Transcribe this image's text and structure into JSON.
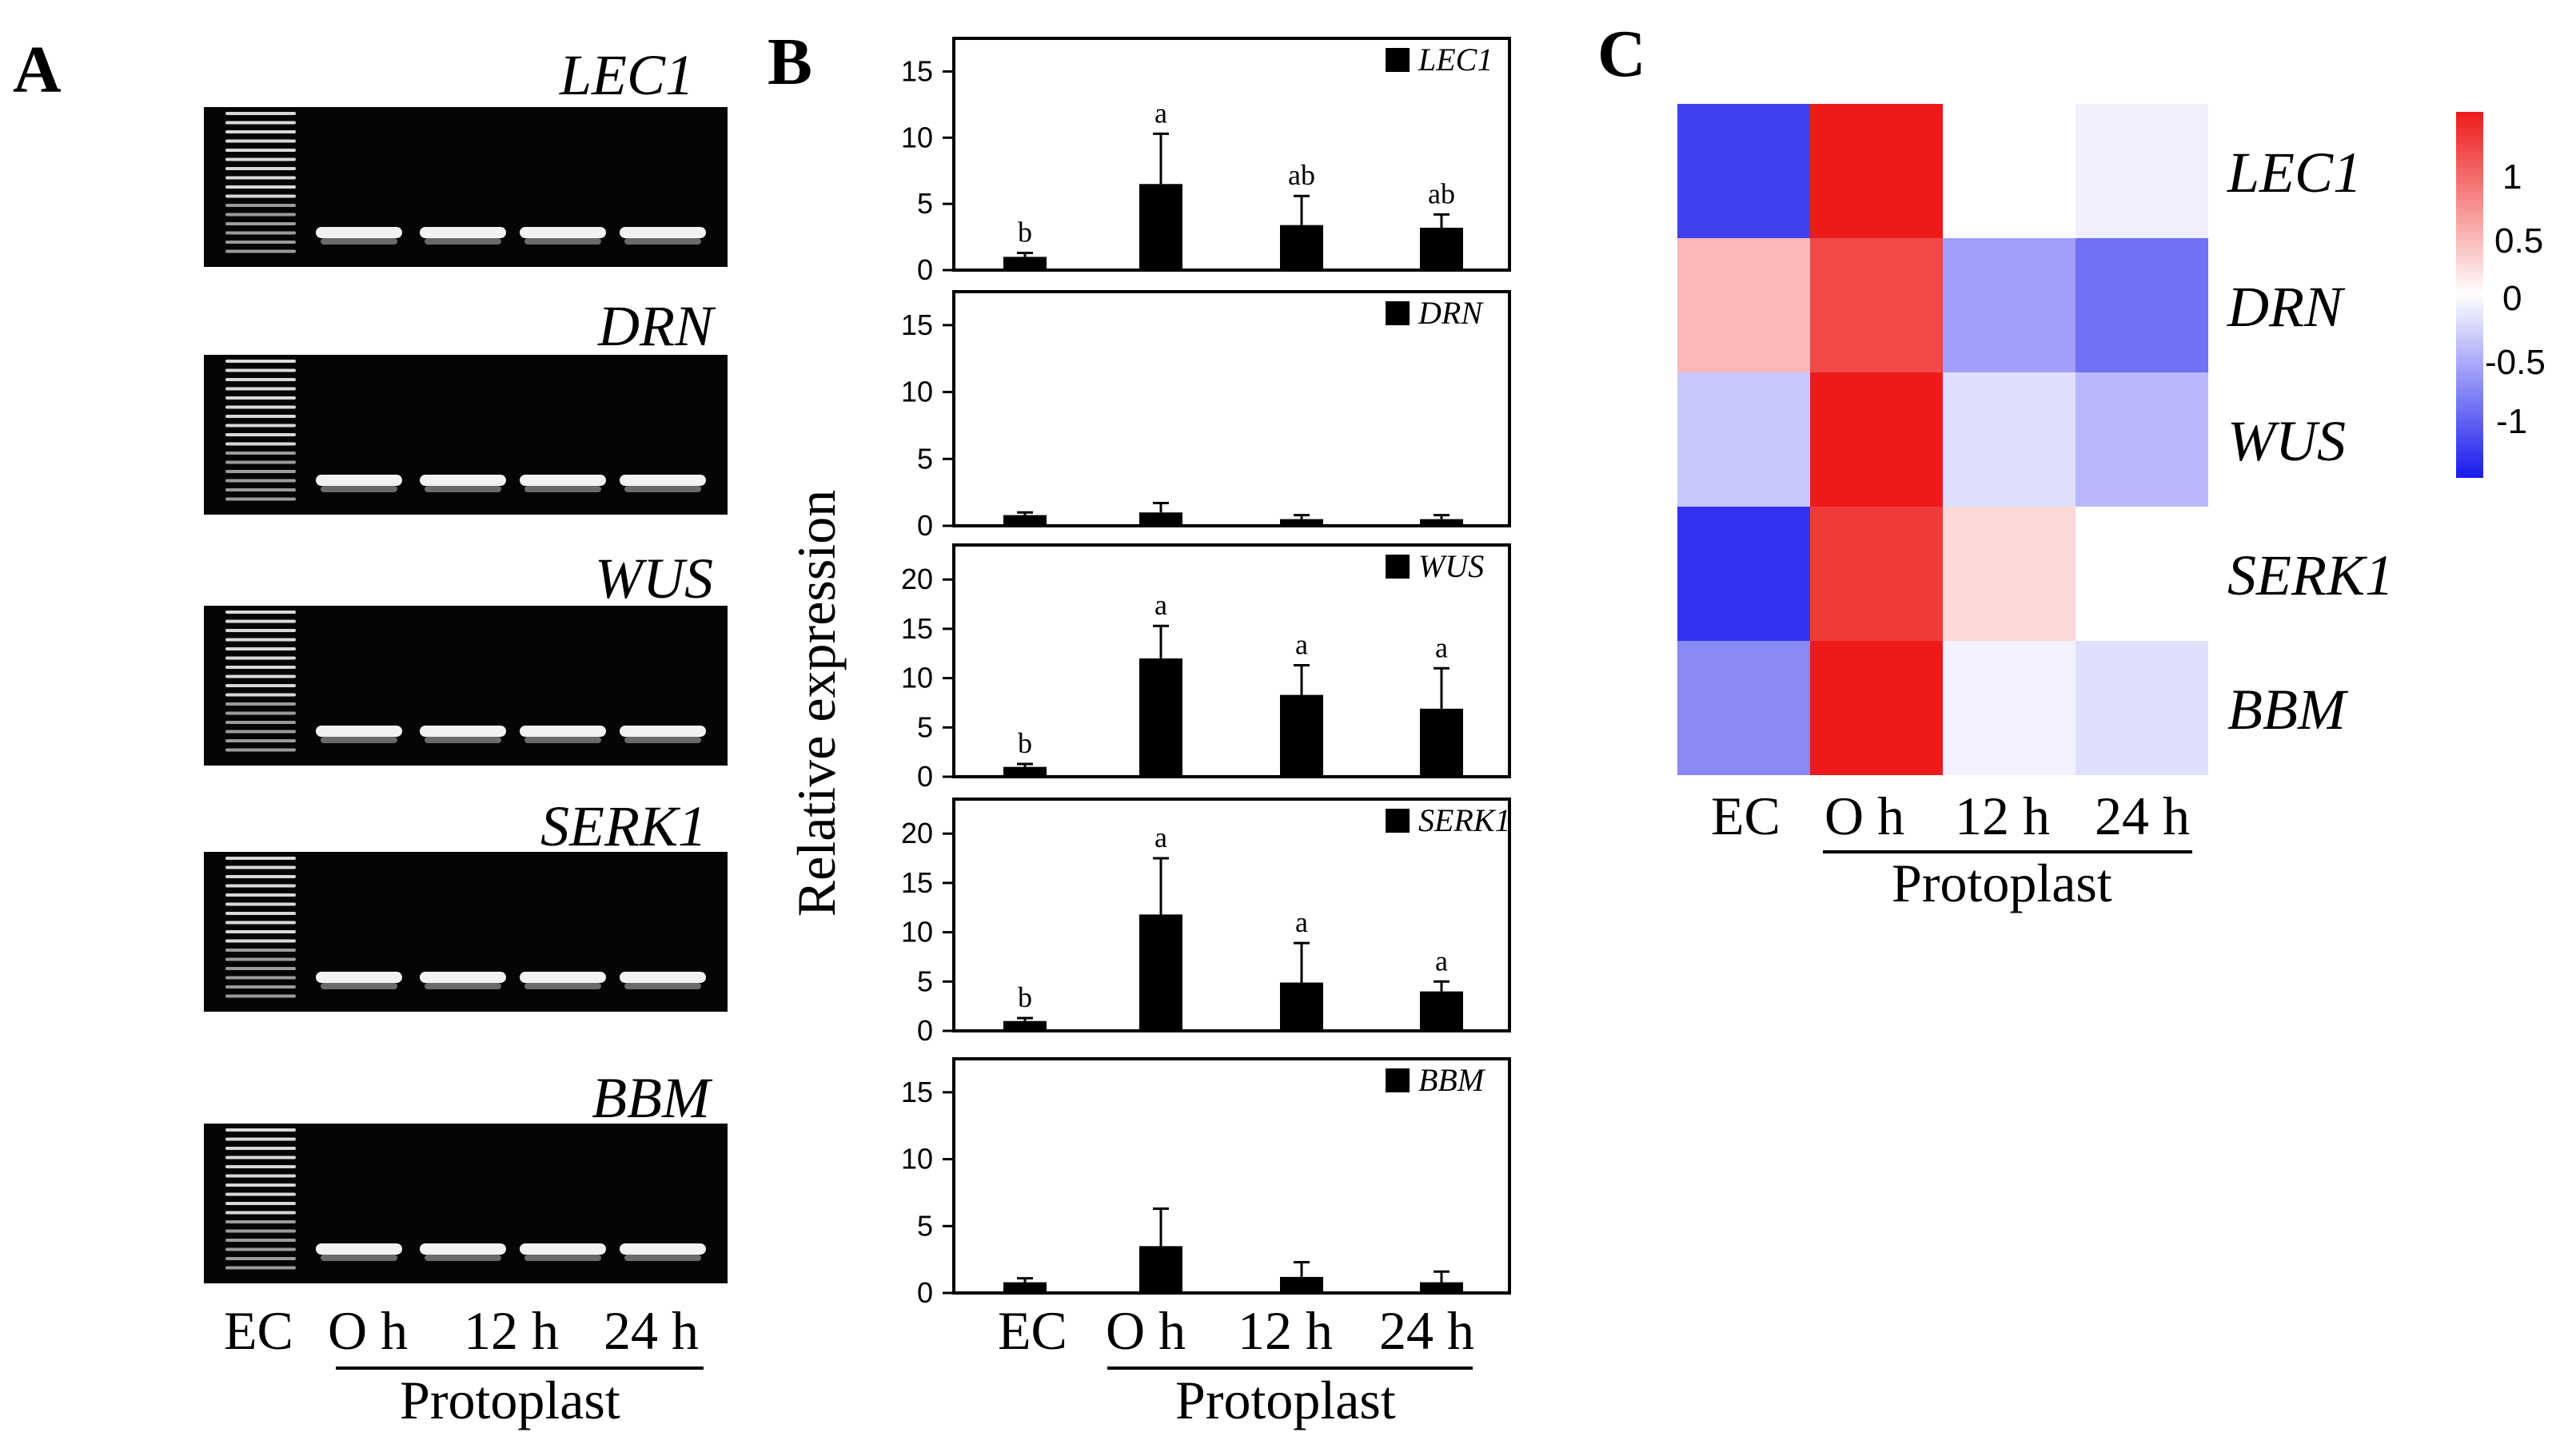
{
  "panels": {
    "a": "A",
    "b": "B",
    "c": "C"
  },
  "genes": [
    "LEC1",
    "DRN",
    "WUS",
    "SERK1",
    "BBM"
  ],
  "lanes": [
    "EC",
    "O h",
    "12 h",
    "24 h"
  ],
  "protoplast_label": "Protoplast",
  "y_axis_label": "Relative expression",
  "chart_data": [
    {
      "type": "bar",
      "gene": "LEC1",
      "categories": [
        "EC",
        "O h",
        "12 h",
        "24 h"
      ],
      "values": [
        1.0,
        6.5,
        3.4,
        3.2
      ],
      "errors": [
        0.3,
        3.8,
        2.2,
        1.0
      ],
      "labels": [
        "b",
        "a",
        "ab",
        "ab"
      ],
      "ylim": [
        0,
        17.5
      ],
      "yticks": [
        0,
        5,
        10,
        15
      ]
    },
    {
      "type": "bar",
      "gene": "DRN",
      "categories": [
        "EC",
        "O h",
        "12 h",
        "24 h"
      ],
      "values": [
        0.8,
        1.0,
        0.5,
        0.5
      ],
      "errors": [
        0.2,
        0.7,
        0.3,
        0.3
      ],
      "labels": [
        "",
        "",
        "",
        ""
      ],
      "ylim": [
        0,
        17.5
      ],
      "yticks": [
        0,
        5,
        10,
        15
      ]
    },
    {
      "type": "bar",
      "gene": "WUS",
      "categories": [
        "EC",
        "O h",
        "12 h",
        "24 h"
      ],
      "values": [
        1.0,
        12.0,
        8.3,
        6.9
      ],
      "errors": [
        0.3,
        3.3,
        3.0,
        4.1
      ],
      "labels": [
        "b",
        "a",
        "a",
        "a"
      ],
      "ylim": [
        0,
        23.5
      ],
      "yticks": [
        0,
        5,
        10,
        15,
        20
      ]
    },
    {
      "type": "bar",
      "gene": "SERK1",
      "categories": [
        "EC",
        "O h",
        "12 h",
        "24 h"
      ],
      "values": [
        1.0,
        11.8,
        4.9,
        4.0
      ],
      "errors": [
        0.3,
        5.7,
        4.0,
        1.0
      ],
      "labels": [
        "b",
        "a",
        "a",
        "a"
      ],
      "ylim": [
        0,
        23.5
      ],
      "yticks": [
        0,
        5,
        10,
        15,
        20
      ]
    },
    {
      "type": "bar",
      "gene": "BBM",
      "categories": [
        "EC",
        "O h",
        "12 h",
        "24 h"
      ],
      "values": [
        0.8,
        3.5,
        1.2,
        0.8
      ],
      "errors": [
        0.3,
        2.8,
        1.1,
        0.8
      ],
      "labels": [
        "",
        "",
        "",
        ""
      ],
      "ylim": [
        0,
        17.5
      ],
      "yticks": [
        0,
        5,
        10,
        15
      ]
    },
    {
      "type": "heatmap",
      "rows": [
        "LEC1",
        "DRN",
        "WUS",
        "SERK1",
        "BBM"
      ],
      "columns": [
        "EC",
        "O h",
        "12 h",
        "24 h"
      ],
      "values": [
        [
          -1.2,
          1.45,
          0.0,
          -0.1
        ],
        [
          0.45,
          1.15,
          -0.6,
          -0.9
        ],
        [
          -0.35,
          1.45,
          -0.2,
          -0.45
        ],
        [
          -1.3,
          1.25,
          0.25,
          0.0
        ],
        [
          -0.75,
          1.45,
          -0.08,
          -0.2
        ]
      ],
      "colorbar_ticks": [
        "1",
        "0.5",
        "0",
        "-0.5",
        "-1"
      ],
      "vmin": -1.45,
      "vmax": 1.45,
      "colors": {
        "low": "#1a1aee",
        "mid": "#ffffff",
        "high": "#ee1a1a"
      }
    }
  ]
}
